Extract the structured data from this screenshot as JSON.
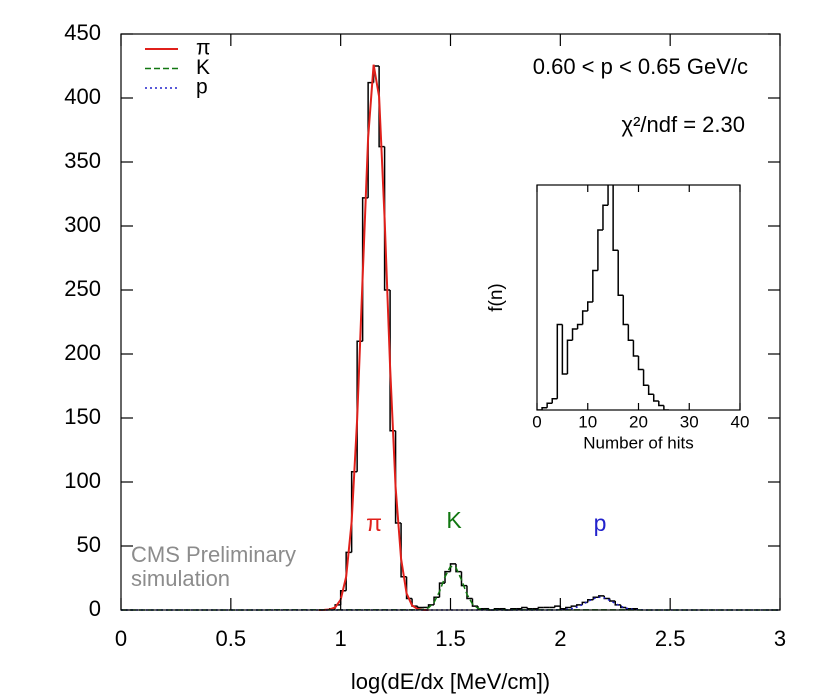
{
  "chart_data": [
    {
      "type": "histogram",
      "xlabel": "log(dE/dx [MeV/cm])",
      "bins": [
        0.95,
        0.975,
        1.0,
        1.025,
        1.05,
        1.075,
        1.1,
        1.125,
        1.15,
        1.175,
        1.2,
        1.225,
        1.25,
        1.275,
        1.3,
        1.325,
        1.35,
        1.375,
        1.4,
        1.425,
        1.45,
        1.475,
        1.5,
        1.525,
        1.55,
        1.575,
        1.6,
        1.625,
        1.65,
        1.675,
        1.7,
        1.725,
        1.75,
        1.775,
        1.8,
        1.825,
        1.85,
        1.875,
        1.9,
        1.925,
        1.95,
        1.975,
        2.0,
        2.025,
        2.05,
        2.075,
        2.1,
        2.125,
        2.15,
        2.175,
        2.2,
        2.225,
        2.25,
        2.275,
        2.3,
        2.325,
        2.35
      ],
      "values": [
        1,
        4,
        15,
        45,
        108,
        210,
        322,
        412,
        425,
        362,
        250,
        140,
        68,
        26,
        9,
        3,
        2,
        2,
        4,
        10,
        21,
        30,
        36,
        30,
        19,
        9,
        3,
        1,
        1,
        0,
        1,
        1,
        0,
        1,
        1,
        2,
        1,
        1,
        2,
        2,
        2,
        3,
        1,
        2,
        3,
        4,
        6,
        8,
        10,
        11,
        9,
        7,
        4,
        2,
        1,
        1
      ],
      "color": "#000000",
      "series": [
        {
          "name": "π",
          "color": "#e0201b",
          "style": "solid",
          "x": [
            0.9,
            0.925,
            0.95,
            0.975,
            1.0,
            1.025,
            1.05,
            1.075,
            1.1,
            1.125,
            1.15,
            1.175,
            1.2,
            1.225,
            1.25,
            1.275,
            1.3,
            1.325,
            1.35,
            1.375,
            1.4
          ],
          "values": [
            0,
            0.1,
            0.4,
            2,
            8,
            26,
            69,
            149,
            260,
            369,
            426,
            401,
            306,
            190,
            96,
            40,
            13,
            3.6,
            0.8,
            0.1,
            0
          ]
        },
        {
          "name": "K",
          "color": "#117711",
          "style": "dashed",
          "x": [
            0,
            1.35,
            1.375,
            1.4,
            1.425,
            1.45,
            1.475,
            1.5,
            1.525,
            1.55,
            1.575,
            1.6,
            1.625,
            1.65,
            1.675,
            3
          ],
          "values": [
            0,
            0.1,
            0.4,
            1.7,
            5.9,
            14.4,
            25.9,
            34.1,
            33.1,
            23.6,
            12.3,
            4.7,
            1.3,
            0.3,
            0.1,
            0
          ]
        },
        {
          "name": "p",
          "color": "#2222cc",
          "style": "dotted",
          "x": [
            0,
            1.95,
            1.975,
            2.0,
            2.025,
            2.05,
            2.075,
            2.1,
            2.125,
            2.15,
            2.175,
            2.2,
            2.225,
            2.25,
            2.275,
            2.3,
            2.325,
            2.35,
            2.375,
            2.4,
            3
          ],
          "values": [
            0,
            0,
            0,
            0.1,
            0.4,
            1,
            2.2,
            4.1,
            6.6,
            8.8,
            10,
            9.5,
            7.5,
            5.1,
            2.9,
            1.4,
            0.6,
            0.2,
            0.1,
            0,
            0
          ]
        }
      ],
      "xlim": [
        0,
        3
      ],
      "ylim": [
        0,
        450
      ],
      "xticks": [
        0,
        0.5,
        1,
        1.5,
        2,
        2.5,
        3
      ],
      "yticks": [
        0,
        50,
        100,
        150,
        200,
        250,
        300,
        350,
        400,
        450
      ],
      "legend": "upper left",
      "annotations": [
        "0.60 < p < 0.65 GeV/c",
        "χ²/ndf = 2.30",
        "CMS Preliminary",
        "simulation"
      ]
    },
    {
      "type": "histogram",
      "xlabel": "Number of hits",
      "ylabel": "f(n)",
      "bins": [
        0,
        1,
        2,
        3,
        4,
        5,
        6,
        7,
        8,
        9,
        10,
        11,
        12,
        13,
        14,
        15,
        16,
        17,
        18,
        19,
        20,
        21,
        22,
        23,
        24,
        25,
        26
      ],
      "values": [
        0,
        1,
        3,
        5,
        38,
        16,
        31,
        36,
        38,
        44,
        48,
        62,
        80,
        91,
        105,
        71,
        51,
        38,
        31,
        24,
        18,
        11,
        7,
        4,
        2,
        0
      ],
      "color": "#000000",
      "xlim": [
        0,
        40
      ],
      "ylim": [
        0,
        100
      ],
      "xticks": [
        0,
        10,
        20,
        30,
        40
      ]
    }
  ]
}
